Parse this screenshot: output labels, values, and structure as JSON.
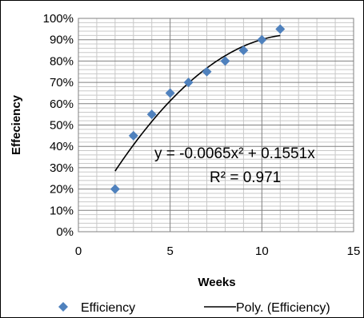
{
  "chart_data": {
    "type": "scatter",
    "title": "",
    "xlabel": "Weeks",
    "ylabel": "Effeciency",
    "xlim": [
      0,
      15
    ],
    "ylim": [
      0,
      1
    ],
    "x_ticks": [
      0,
      5,
      10,
      15
    ],
    "y_ticks": [
      0,
      0.1,
      0.2,
      0.3,
      0.4,
      0.5,
      0.6,
      0.7,
      0.8,
      0.9,
      1.0
    ],
    "x_tick_labels": [
      "0",
      "5",
      "10",
      "15"
    ],
    "y_tick_labels": [
      "0%",
      "10%",
      "20%",
      "30%",
      "40%",
      "50%",
      "60%",
      "70%",
      "80%",
      "90%",
      "100%"
    ],
    "grid": true,
    "grid_minor": true,
    "legend_position": "bottom",
    "series": [
      {
        "name": "Efficiency",
        "marker": "diamond",
        "color": "#4f81bd",
        "points": [
          {
            "x": 2,
            "y": 0.2
          },
          {
            "x": 3,
            "y": 0.45
          },
          {
            "x": 4,
            "y": 0.55
          },
          {
            "x": 5,
            "y": 0.65
          },
          {
            "x": 6,
            "y": 0.7
          },
          {
            "x": 7,
            "y": 0.75
          },
          {
            "x": 8,
            "y": 0.8
          },
          {
            "x": 9,
            "y": 0.85
          },
          {
            "x": 10,
            "y": 0.9
          },
          {
            "x": 11,
            "y": 0.95
          }
        ]
      }
    ],
    "trendline": {
      "name": "Poly. (Efficiency)",
      "type": "polynomial",
      "color": "#000000",
      "coefficients": {
        "a": -0.0065,
        "b": 0.1551,
        "c": 0
      },
      "x_range": [
        2,
        11
      ]
    },
    "annotations": {
      "equation": "y = -0.0065x² + 0.1551x",
      "r_squared": "R² = 0.971"
    }
  }
}
